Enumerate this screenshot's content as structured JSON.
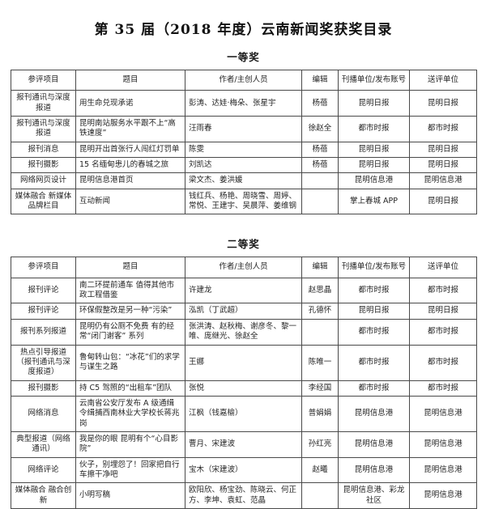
{
  "page": {
    "title": "第 35 届（2018 年度）云南新闻奖获奖目录"
  },
  "columns": [
    "参评项目",
    "题目",
    "作者/主创人员",
    "编辑",
    "刊播单位/发布账号",
    "送评单位"
  ],
  "sections": [
    {
      "heading": "一等奖",
      "rows": [
        [
          "报刊通讯与深度报道",
          "用生命兑现承诺",
          "彭涛、达娃·梅朵、张星宇",
          "杨蓓",
          "昆明日报",
          "昆明日报"
        ],
        [
          "报刊通讯与深度报道",
          "昆明南站服务水平跟不上“高铁速度”",
          "汪雨春",
          "徐赵全",
          "都市时报",
          "都市时报"
        ],
        [
          "报刊消息",
          "昆明开出首张行人闯红灯罚单",
          "陈雯",
          "杨蓓",
          "昆明日报",
          "昆明日报"
        ],
        [
          "报刊摄影",
          "15 名缅甸患儿的春城之旅",
          "刘凯达",
          "杨蓓",
          "昆明日报",
          "昆明日报"
        ],
        [
          "网络网页设计",
          "昆明信息港首页",
          "梁文杰、姜洪媛",
          "",
          "昆明信息港",
          "昆明信息港"
        ],
        [
          "媒体融合 新媒体品牌栏目",
          "互动新闻",
          "钱红兵、杨艳、周晓雪、周婷、常悦、王建宇、吴晨萍、姜维钢",
          "",
          "掌上春城 APP",
          "昆明日报"
        ]
      ]
    },
    {
      "heading": "二等奖",
      "rows": [
        [
          "报刊评论",
          "南二环提前通车 值得其他市政工程借鉴",
          "许建龙",
          "赵思晶",
          "都市时报",
          "都市时报"
        ],
        [
          "报刊评论",
          "环保假整改是另一种“污染”",
          "泓凯（丁武超）",
          "孔德怀",
          "昆明日报",
          "昆明日报"
        ],
        [
          "报刊系列报道",
          "昆明仍有公厕不免费 有的经常“闭门谢客” 系列",
          "张洪涛、赵秋梅、谢彦冬、黎一唯、庞继光、徐赵全",
          "",
          "都市时报",
          "都市时报"
        ],
        [
          "热点引导报道（报刊通讯与深度报道）",
          "鲁甸转山包：“冰花”们的求学与谋生之路",
          "王娜",
          "陈唯一",
          "都市时报",
          "都市时报"
        ],
        [
          "报刊摄影",
          "持 C5 驾照的“出租车”团队",
          "张悦",
          "李经国",
          "都市时报",
          "都市时报"
        ],
        [
          "网络消息",
          "云南省公安厅发布 A 级通缉令缉捕西南林业大学校长蒋兆岗",
          "江枫（钱嘉榆）",
          "普娟娟",
          "昆明信息港",
          "昆明信息港"
        ],
        [
          "典型报道（网络通讯）",
          "我是你的眼 昆明有个“心目影院”",
          "曹月、宋建波",
          "孙红亮",
          "昆明信息港",
          "昆明信息港"
        ],
        [
          "网络评论",
          "伙子，别埋怨了！回家把自行车擦干净吧",
          "宝木（宋建波）",
          "赵曦",
          "昆明信息港",
          "昆明信息港"
        ],
        [
          "媒体融合 融合创新",
          "小明写稿",
          "欧阳欣、杨宝劲、陈晓云、何正方、李坤、袁虹、范晶",
          "",
          "昆明信息港、彩龙社区",
          "昆明信息港"
        ]
      ]
    }
  ],
  "layout_colors": {
    "text": "#1f1f1f",
    "border": "#4a4a4a",
    "background": "#ffffff"
  }
}
